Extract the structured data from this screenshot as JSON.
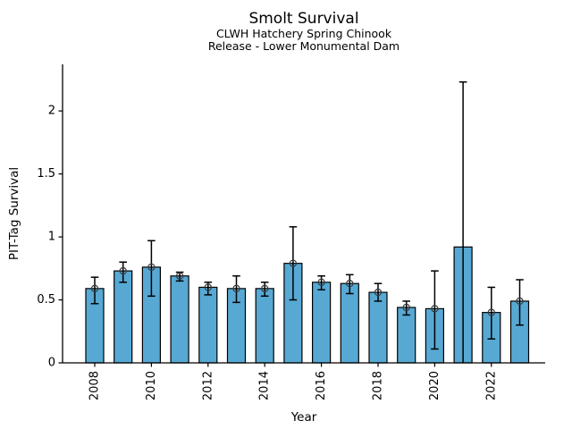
{
  "chart_data": {
    "type": "bar",
    "title": "Smolt Survival",
    "subtitle_line1": "CLWH Hatchery Spring Chinook",
    "subtitle_line2": "Release - Lower Monumental Dam",
    "xlabel": "Year",
    "ylabel": "PIT-Tag Survival",
    "categories": [
      2008,
      2009,
      2010,
      2011,
      2012,
      2013,
      2014,
      2015,
      2016,
      2017,
      2018,
      2019,
      2020,
      2021,
      2022,
      2023
    ],
    "series": [
      {
        "name": "PIT-Tag Survival",
        "values": [
          0.59,
          0.73,
          0.76,
          0.69,
          0.6,
          0.59,
          0.59,
          0.79,
          0.64,
          0.63,
          0.56,
          0.44,
          0.43,
          0.92,
          0.4,
          0.49
        ],
        "ci_low": [
          0.47,
          0.64,
          0.53,
          0.65,
          0.54,
          0.48,
          0.53,
          0.5,
          0.58,
          0.55,
          0.49,
          0.38,
          0.11,
          0.0,
          0.19,
          0.3
        ],
        "ci_high": [
          0.68,
          0.8,
          0.97,
          0.72,
          0.64,
          0.69,
          0.64,
          1.08,
          0.69,
          0.7,
          0.63,
          0.49,
          0.73,
          2.23,
          0.6,
          0.66
        ]
      }
    ],
    "ylim": [
      0,
      2.37
    ],
    "yticks": [
      0,
      0.5,
      1,
      1.5,
      2
    ],
    "ytick_labels": [
      "0",
      "0.5",
      "1",
      "1.5",
      "2"
    ],
    "xticks_labeled": [
      2008,
      2010,
      2012,
      2014,
      2016,
      2018,
      2020,
      2022
    ],
    "grid": false,
    "legend": null,
    "error_bar_style": "vertical line with caps",
    "marker": "open-circle",
    "colors": {
      "bar_fill": "#57a9d4",
      "bar_edge": "#000000",
      "error_bar": "#000000",
      "marker_edge": "#3a3a3a",
      "axis": "#000000",
      "text": "#000000",
      "background": "#ffffff"
    }
  }
}
